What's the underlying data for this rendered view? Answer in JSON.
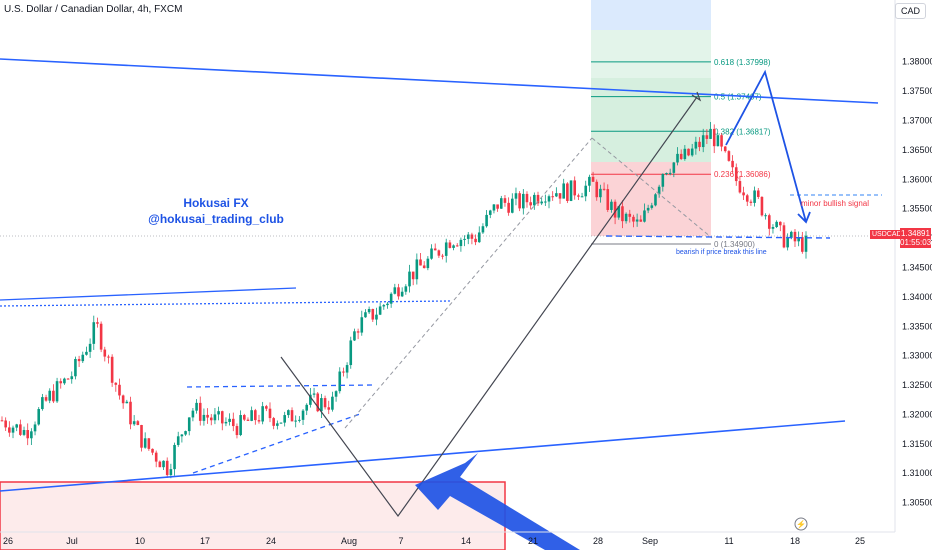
{
  "header": {
    "symbol_title": "U.S. Dollar / Canadian Dollar, 4h, FXCM",
    "currency": "CAD"
  },
  "price_label": {
    "symbol": "USDCAD",
    "price": "1.34891",
    "countdown": "01:55:03"
  },
  "annotations": {
    "brand_name": "Hokusai FX",
    "brand_handle": "@hokusai_trading_club",
    "minor_bullish": "minor bullish signal",
    "bearish_break": "bearish if price break this line"
  },
  "colors": {
    "up_candle": "#089981",
    "down_candle": "#f23645",
    "trendline": "#2962ff",
    "brand": "#1e53e5"
  },
  "chart_data": {
    "type": "candlestick",
    "title": "U.S. Dollar / Canadian Dollar, 4h, FXCM",
    "y_unit": "CAD",
    "ylim": [
      1.3,
      1.3905
    ],
    "y_ticks": [
      "1.30500",
      "1.31000",
      "1.31500",
      "1.32000",
      "1.32500",
      "1.33000",
      "1.33500",
      "1.34000",
      "1.34500",
      "1.35000",
      "1.35500",
      "1.36000",
      "1.36500",
      "1.37000",
      "1.37500",
      "1.38000"
    ],
    "x_ticks": [
      "26",
      "Jul",
      "10",
      "17",
      "24",
      "Aug",
      "7",
      "14",
      "21",
      "28",
      "Sep",
      "11",
      "18",
      "25"
    ],
    "close_series": [
      [
        "26",
        1.319
      ],
      [
        "29",
        1.317
      ],
      [
        "Jul",
        1.323
      ],
      [
        "5",
        1.327
      ],
      [
        "10",
        1.335
      ],
      [
        "12",
        1.323
      ],
      [
        "14",
        1.315
      ],
      [
        "17",
        1.311
      ],
      [
        "19",
        1.321
      ],
      [
        "21",
        1.319
      ],
      [
        "24",
        1.318
      ],
      [
        "26",
        1.32
      ],
      [
        "28",
        1.319
      ],
      [
        "Aug",
        1.322
      ],
      [
        "3",
        1.322
      ],
      [
        "4",
        1.335
      ],
      [
        "7",
        1.338
      ],
      [
        "9",
        1.343
      ],
      [
        "11",
        1.346
      ],
      [
        "14",
        1.35
      ],
      [
        "16",
        1.35
      ],
      [
        "18",
        1.356
      ],
      [
        "21",
        1.356
      ],
      [
        "23",
        1.358
      ],
      [
        "25",
        1.358
      ],
      [
        "28",
        1.359
      ],
      [
        "30",
        1.354
      ],
      [
        "Sep",
        1.352
      ],
      [
        "5",
        1.362
      ],
      [
        "7",
        1.364
      ],
      [
        "11",
        1.368
      ],
      [
        "13",
        1.36
      ],
      [
        "15",
        1.356
      ],
      [
        "18",
        1.35
      ],
      [
        "19",
        1.3489
      ]
    ],
    "fibonacci": [
      {
        "level": "0",
        "price": "1.34900",
        "label": "0 (1.34900)"
      },
      {
        "level": "0.236",
        "price": "1.36086",
        "label": "0.236 (1.36086)"
      },
      {
        "level": "0.382",
        "price": "1.36817",
        "label": "0.382 (1.36817)"
      },
      {
        "level": "0.5",
        "price": "1.37407",
        "label": "0.5 (1.37407)"
      },
      {
        "level": "0.618",
        "price": "1.37998",
        "label": "0.618 (1.37998)"
      }
    ],
    "grid": false
  }
}
